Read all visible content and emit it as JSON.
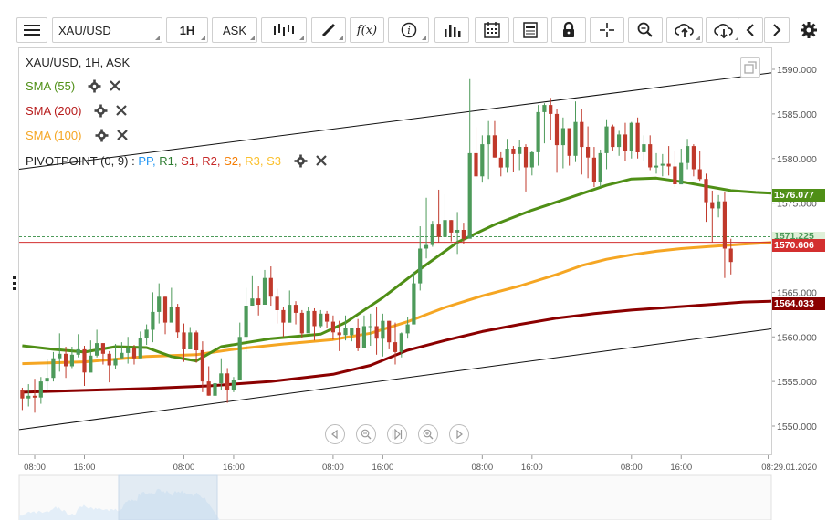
{
  "toolbar": {
    "symbol": "XAU/USD",
    "interval": "1H",
    "price_type": "ASK",
    "icons": [
      "menu-icon",
      "bar-type-icon",
      "draw-icon",
      "function-icon",
      "info-icon",
      "volume-icon",
      "calendar-icon",
      "news-icon",
      "lock-icon",
      "crosshair-icon",
      "zoom-icon",
      "upload-icon",
      "download-icon",
      "chevron-left-icon",
      "chevron-right-icon",
      "gear-icon"
    ],
    "function_label": "f(x)"
  },
  "legend": {
    "title": "XAU/USD, 1H, ASK",
    "sma55": "SMA (55)",
    "sma200": "SMA (200)",
    "sma100": "SMA (100)",
    "pivot_name": "PIVOTPOINT (0, 9)",
    "pivot_sep": ":",
    "pivot_pp": "PP,",
    "pivot_r1": "R1,",
    "pivot_s1": "S1,",
    "pivot_r2": "R2,",
    "pivot_s2": "S2,",
    "pivot_r3": "R3,",
    "pivot_s3": "S3"
  },
  "colors": {
    "up": "#4d9a5a",
    "down": "#c0392b",
    "sma55": "#4f8f16",
    "sma100": "#f5a623",
    "sma200": "#8b0000",
    "trend": "#111111",
    "pp": "#2196f3",
    "r1": "#2e7d32",
    "s1": "#c62828",
    "r2": "#c62828",
    "s2": "#f57c00",
    "r3": "#fbc02d",
    "s3": "#fbc02d"
  },
  "price_labels": {
    "sma55": "1576.077",
    "bid_line": "1571.225",
    "last": "1570.606",
    "sma200": "1564.033"
  },
  "chart_data": {
    "type": "candlestick",
    "title": "XAU/USD, 1H, ASK",
    "ylim": [
      1548.0,
      1592.0
    ],
    "y_ticks": [
      1550,
      1555,
      1560,
      1565,
      1570,
      1575,
      1580,
      1585,
      1590
    ],
    "y_tick_labels": [
      "1550.000",
      "1555.000",
      "1560.000",
      "1565.000",
      "1570.000",
      "1575.000",
      "1580.000",
      "1585.000",
      "1590.000"
    ],
    "x_ticks": [
      "08:00",
      "16:00",
      "08:00",
      "16:00",
      "08:00",
      "16:00",
      "08:00",
      "16:00",
      "08:00",
      "16:00",
      "08:29.01.2020"
    ],
    "x_tick_index": [
      2,
      10,
      26,
      34,
      50,
      58,
      74,
      82,
      98,
      106,
      120
    ],
    "n": 121,
    "candles": [
      [
        1554.0,
        1553.1,
        1554.3,
        1551.8
      ],
      [
        1553.1,
        1553.4,
        1554.7,
        1552.2
      ],
      [
        1553.4,
        1553.2,
        1555.3,
        1551.5
      ],
      [
        1553.2,
        1555.0,
        1555.5,
        1552.5
      ],
      [
        1555.0,
        1555.4,
        1557.5,
        1553.9
      ],
      [
        1555.4,
        1557.6,
        1558.3,
        1555.0
      ],
      [
        1557.6,
        1558.1,
        1560.4,
        1556.1
      ],
      [
        1558.1,
        1556.7,
        1558.9,
        1555.4
      ],
      [
        1556.7,
        1558.0,
        1558.9,
        1556.5
      ],
      [
        1558.0,
        1558.6,
        1560.3,
        1557.7
      ],
      [
        1558.6,
        1556.0,
        1559.0,
        1554.5
      ],
      [
        1556.0,
        1557.9,
        1559.6,
        1556.6
      ],
      [
        1557.9,
        1559.3,
        1560.8,
        1557.7
      ],
      [
        1559.3,
        1558.1,
        1559.3,
        1556.9
      ],
      [
        1558.1,
        1556.8,
        1558.4,
        1554.9
      ],
      [
        1556.8,
        1557.6,
        1559.2,
        1556.4
      ],
      [
        1557.6,
        1558.2,
        1559.4,
        1557.6
      ],
      [
        1558.2,
        1558.8,
        1560.0,
        1557.0
      ],
      [
        1558.8,
        1557.6,
        1559.1,
        1556.9
      ],
      [
        1557.6,
        1559.9,
        1560.6,
        1558.8
      ],
      [
        1559.9,
        1560.8,
        1561.4,
        1559.1
      ],
      [
        1560.8,
        1562.8,
        1565.0,
        1559.4
      ],
      [
        1562.8,
        1564.5,
        1566.0,
        1561.5
      ],
      [
        1564.5,
        1561.6,
        1564.5,
        1560.3
      ],
      [
        1561.6,
        1563.4,
        1565.5,
        1562.0
      ],
      [
        1563.4,
        1560.5,
        1563.7,
        1559.9
      ],
      [
        1560.5,
        1558.6,
        1561.5,
        1557.2
      ],
      [
        1558.6,
        1560.5,
        1561.1,
        1558.6
      ],
      [
        1560.5,
        1558.5,
        1560.7,
        1557.1
      ],
      [
        1558.5,
        1555.0,
        1559.5,
        1553.8
      ],
      [
        1555.0,
        1553.4,
        1556.7,
        1553.4
      ],
      [
        1553.4,
        1554.8,
        1555.0,
        1553.1
      ],
      [
        1554.8,
        1555.9,
        1557.6,
        1554.0
      ],
      [
        1555.9,
        1554.0,
        1556.5,
        1552.6
      ],
      [
        1554.0,
        1555.2,
        1555.5,
        1553.8
      ],
      [
        1555.2,
        1560.0,
        1561.6,
        1555.2
      ],
      [
        1560.0,
        1563.5,
        1565.5,
        1558.3
      ],
      [
        1563.5,
        1564.3,
        1566.9,
        1563.5
      ],
      [
        1564.3,
        1563.6,
        1565.7,
        1562.4
      ],
      [
        1563.6,
        1566.6,
        1567.5,
        1565.5
      ],
      [
        1566.6,
        1564.5,
        1567.9,
        1563.5
      ],
      [
        1564.5,
        1563.0,
        1565.4,
        1561.5
      ],
      [
        1563.0,
        1561.6,
        1563.4,
        1560.0
      ],
      [
        1561.6,
        1563.6,
        1565.2,
        1561.8
      ],
      [
        1563.6,
        1562.7,
        1564.0,
        1561.4
      ],
      [
        1562.7,
        1560.4,
        1563.0,
        1559.9
      ],
      [
        1560.4,
        1562.9,
        1563.3,
        1560.5
      ],
      [
        1562.9,
        1561.2,
        1563.2,
        1559.6
      ],
      [
        1561.2,
        1562.6,
        1563.0,
        1561.0
      ],
      [
        1562.6,
        1561.7,
        1562.9,
        1561.0
      ],
      [
        1561.7,
        1560.5,
        1562.4,
        1559.7
      ],
      [
        1560.5,
        1560.2,
        1561.8,
        1558.4
      ],
      [
        1560.2,
        1561.0,
        1562.4,
        1559.6
      ],
      [
        1560.2,
        1561.0,
        1561.0,
        1559.5
      ],
      [
        1561.0,
        1558.8,
        1562.0,
        1558.4
      ],
      [
        1558.8,
        1561.2,
        1562.4,
        1558.7
      ],
      [
        1561.2,
        1561.2,
        1562.6,
        1559.0
      ],
      [
        1561.2,
        1559.8,
        1563.4,
        1558.0
      ],
      [
        1559.8,
        1561.8,
        1562.6,
        1557.8
      ],
      [
        1561.8,
        1559.4,
        1561.8,
        1558.6
      ],
      [
        1559.4,
        1558.3,
        1561.6,
        1556.9
      ],
      [
        1558.3,
        1560.4,
        1560.5,
        1557.7
      ],
      [
        1560.4,
        1561.4,
        1562.2,
        1559.8
      ],
      [
        1561.4,
        1566.0,
        1567.3,
        1563.4
      ],
      [
        1566.0,
        1569.9,
        1572.4,
        1565.2
      ],
      [
        1569.9,
        1570.3,
        1575.6,
        1568.8
      ],
      [
        1570.3,
        1572.6,
        1573.0,
        1570.1
      ],
      [
        1572.6,
        1571.2,
        1576.5,
        1570.6
      ],
      [
        1571.2,
        1573.1,
        1576.0,
        1570.4
      ],
      [
        1573.1,
        1571.7,
        1573.1,
        1570.7
      ],
      [
        1571.7,
        1572.0,
        1574.0,
        1569.3
      ],
      [
        1572.0,
        1571.0,
        1572.8,
        1570.4
      ],
      [
        1571.0,
        1580.6,
        1588.9,
        1573.0
      ],
      [
        1580.6,
        1578.0,
        1583.5,
        1577.7
      ],
      [
        1578.0,
        1581.6,
        1582.6,
        1577.3
      ],
      [
        1581.6,
        1582.6,
        1584.2,
        1577.7
      ],
      [
        1582.6,
        1580.1,
        1584.2,
        1580.1
      ],
      [
        1580.1,
        1579.0,
        1580.7,
        1578.0
      ],
      [
        1579.0,
        1581.1,
        1582.2,
        1578.4
      ],
      [
        1581.1,
        1580.5,
        1581.4,
        1578.5
      ],
      [
        1580.5,
        1581.3,
        1582.1,
        1578.7
      ],
      [
        1581.3,
        1579.0,
        1581.6,
        1576.3
      ],
      [
        1579.0,
        1580.7,
        1580.8,
        1578.1
      ],
      [
        1580.7,
        1585.2,
        1586.0,
        1579.2
      ],
      [
        1585.2,
        1586.0,
        1586.2,
        1581.7
      ],
      [
        1586.0,
        1585.0,
        1586.8,
        1582.1
      ],
      [
        1585.0,
        1581.5,
        1585.5,
        1578.4
      ],
      [
        1581.5,
        1583.4,
        1584.6,
        1578.9
      ],
      [
        1583.4,
        1580.3,
        1583.3,
        1579.2
      ],
      [
        1580.3,
        1584.1,
        1586.4,
        1579.6
      ],
      [
        1584.1,
        1581.3,
        1585.6,
        1578.2
      ],
      [
        1581.3,
        1580.1,
        1583.6,
        1577.8
      ],
      [
        1580.1,
        1577.4,
        1581.3,
        1576.8
      ],
      [
        1577.4,
        1580.6,
        1581.0,
        1576.8
      ],
      [
        1580.6,
        1583.6,
        1584.4,
        1578.8
      ],
      [
        1583.6,
        1581.3,
        1583.8,
        1580.9
      ],
      [
        1581.3,
        1582.7,
        1583.1,
        1580.3
      ],
      [
        1582.7,
        1580.9,
        1584.0,
        1579.7
      ],
      [
        1580.9,
        1584.0,
        1584.1,
        1580.0
      ],
      [
        1584.0,
        1580.7,
        1584.6,
        1580.0
      ],
      [
        1580.7,
        1581.6,
        1582.6,
        1579.7
      ],
      [
        1581.6,
        1579.0,
        1582.6,
        1578.7
      ],
      [
        1579.0,
        1579.2,
        1580.6,
        1578.3
      ],
      [
        1579.2,
        1579.4,
        1580.5,
        1578.0
      ],
      [
        1579.4,
        1579.1,
        1581.4,
        1578.1
      ],
      [
        1579.1,
        1577.1,
        1580.9,
        1576.8
      ],
      [
        1577.1,
        1579.5,
        1581.1,
        1577.6
      ],
      [
        1579.5,
        1581.4,
        1582.2,
        1578.8
      ],
      [
        1581.4,
        1578.8,
        1581.6,
        1578.0
      ],
      [
        1578.8,
        1577.7,
        1580.8,
        1577.5
      ],
      [
        1577.7,
        1575.1,
        1578.3,
        1572.9
      ],
      [
        1575.1,
        1574.4,
        1576.4,
        1570.6
      ],
      [
        1574.4,
        1575.2,
        1575.9,
        1573.4
      ],
      [
        1575.2,
        1569.9,
        1576.3,
        1566.6
      ],
      [
        1569.9,
        1568.4,
        1571.0,
        1567.0
      ]
    ],
    "sma55_points": [
      [
        0,
        1559.0
      ],
      [
        5,
        1558.6
      ],
      [
        10,
        1558.3
      ],
      [
        15,
        1558.9
      ],
      [
        20,
        1558.8
      ],
      [
        24,
        1557.8
      ],
      [
        28,
        1557.3
      ],
      [
        32,
        1558.9
      ],
      [
        40,
        1559.8
      ],
      [
        48,
        1560.3
      ],
      [
        52,
        1561.6
      ],
      [
        58,
        1564.4
      ],
      [
        64,
        1567.6
      ],
      [
        70,
        1570.6
      ],
      [
        76,
        1572.6
      ],
      [
        82,
        1574.2
      ],
      [
        88,
        1575.6
      ],
      [
        94,
        1577.0
      ],
      [
        98,
        1577.7
      ],
      [
        102,
        1577.8
      ],
      [
        106,
        1577.4
      ],
      [
        110,
        1576.9
      ],
      [
        114,
        1576.4
      ],
      [
        118,
        1576.2
      ],
      [
        121,
        1576.1
      ]
    ],
    "sma100_points": [
      [
        0,
        1557.0
      ],
      [
        10,
        1557.2
      ],
      [
        20,
        1557.8
      ],
      [
        28,
        1558.0
      ],
      [
        34,
        1558.6
      ],
      [
        42,
        1559.2
      ],
      [
        50,
        1559.7
      ],
      [
        56,
        1560.4
      ],
      [
        62,
        1561.7
      ],
      [
        68,
        1563.3
      ],
      [
        74,
        1564.6
      ],
      [
        80,
        1565.7
      ],
      [
        86,
        1567.0
      ],
      [
        90,
        1568.0
      ],
      [
        94,
        1568.7
      ],
      [
        98,
        1569.2
      ],
      [
        102,
        1569.6
      ],
      [
        106,
        1569.9
      ],
      [
        110,
        1570.1
      ],
      [
        116,
        1570.4
      ],
      [
        121,
        1570.6
      ]
    ],
    "sma200_points": [
      [
        0,
        1553.8
      ],
      [
        10,
        1554.0
      ],
      [
        20,
        1554.2
      ],
      [
        30,
        1554.5
      ],
      [
        40,
        1555.0
      ],
      [
        50,
        1555.8
      ],
      [
        56,
        1556.8
      ],
      [
        62,
        1558.5
      ],
      [
        68,
        1559.6
      ],
      [
        74,
        1560.6
      ],
      [
        80,
        1561.4
      ],
      [
        86,
        1562.1
      ],
      [
        92,
        1562.6
      ],
      [
        98,
        1563.0
      ],
      [
        104,
        1563.3
      ],
      [
        110,
        1563.6
      ],
      [
        116,
        1563.9
      ],
      [
        121,
        1564.0
      ]
    ],
    "trend_upper": [
      [
        0,
        1578.8
      ],
      [
        121,
        1589.6
      ]
    ],
    "trend_lower": [
      [
        0,
        1549.6
      ],
      [
        121,
        1560.9
      ]
    ],
    "hlines": [
      {
        "value": 1571.225,
        "color": "#4d9a5a",
        "dash": true
      },
      {
        "value": 1570.606,
        "color": "#d32f2f",
        "dash": false
      }
    ]
  }
}
